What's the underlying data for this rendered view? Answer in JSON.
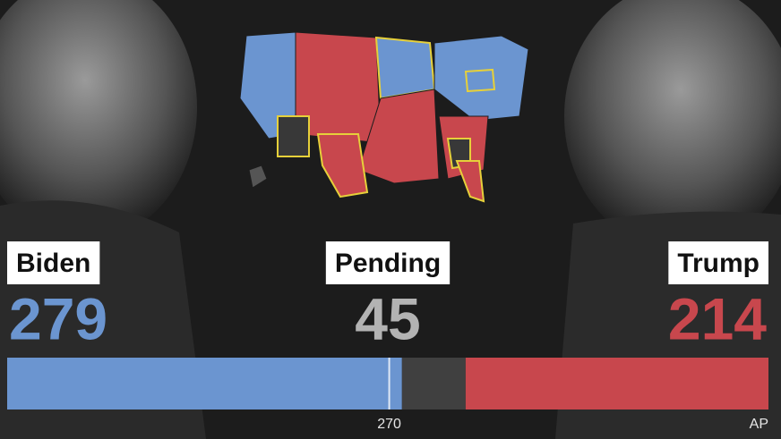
{
  "chart_data": {
    "type": "bar",
    "orientation": "horizontal",
    "stacked": true,
    "series": [
      {
        "name": "Biden",
        "color": "#6b95d0",
        "label_color": "#6b95d0",
        "values": [
          279
        ]
      },
      {
        "name": "Pending",
        "color": "#404040",
        "label_color": "#b3b3b3",
        "values": [
          45
        ]
      },
      {
        "name": "Trump",
        "color": "#c8474d",
        "label_color": "#c8474d",
        "values": [
          214
        ]
      }
    ],
    "xlim": [
      0,
      538
    ],
    "xticks": [
      270
    ],
    "source": "AP"
  }
}
